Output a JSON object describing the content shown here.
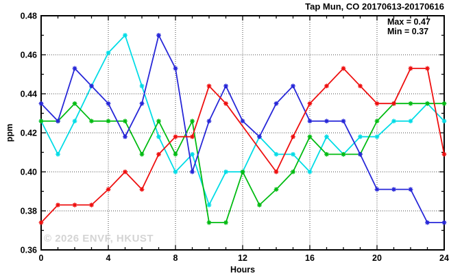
{
  "header": {
    "title": "Tap Mun, CO 20170613-20170616"
  },
  "legend": {
    "max_label": "Max = 0.47",
    "min_label": "Min = 0.37"
  },
  "axes": {
    "y_title": "ppm",
    "x_title": "Hours",
    "x_tick_labels": [
      "0",
      "4",
      "8",
      "12",
      "16",
      "20",
      "24"
    ],
    "y_tick_labels": [
      "0.36",
      "0.38",
      "0.40",
      "0.42",
      "0.44",
      "0.46",
      "0.48"
    ]
  },
  "watermark": {
    "text": "© 2026 ENVF, HKUST"
  },
  "chart_data": {
    "type": "line",
    "title": "Tap Mun, CO 20170613-20170616",
    "xlabel": "Hours",
    "ylabel": "ppm",
    "xlim": [
      0,
      24
    ],
    "ylim": [
      0.36,
      0.48
    ],
    "x_major_ticks": [
      0,
      4,
      8,
      12,
      16,
      20,
      24
    ],
    "y_major_ticks": [
      0.36,
      0.38,
      0.4,
      0.42,
      0.44,
      0.46,
      0.48
    ],
    "x_minor_step": 1,
    "y_minor_step": 0.01,
    "grid": true,
    "grid_x": [
      4,
      8,
      12,
      16,
      20
    ],
    "grid_y": [
      0.38,
      0.4,
      0.42,
      0.44,
      0.46
    ],
    "legend_position": "top-right-inside",
    "annotations": [
      "Max = 0.47",
      "Min = 0.37"
    ],
    "marker": "asterisk",
    "x": [
      0,
      1,
      2,
      3,
      4,
      5,
      6,
      7,
      8,
      9,
      10,
      11,
      12,
      13,
      14,
      15,
      16,
      17,
      18,
      19,
      20,
      21,
      22,
      23,
      24
    ],
    "series": [
      {
        "name": "cyan",
        "color": "#00dce6",
        "values": [
          0.426,
          0.409,
          0.426,
          0.444,
          0.461,
          0.47,
          0.444,
          0.418,
          0.4,
          0.409,
          0.383,
          0.4,
          0.4,
          0.418,
          0.409,
          0.409,
          0.4,
          0.418,
          0.409,
          0.418,
          0.418,
          0.426,
          0.426,
          0.435,
          0.426
        ]
      },
      {
        "name": "green",
        "color": "#00bb11",
        "values": [
          0.426,
          0.426,
          0.435,
          0.426,
          0.426,
          0.426,
          0.409,
          0.426,
          0.409,
          0.426,
          0.374,
          0.374,
          0.4,
          0.383,
          0.391,
          0.4,
          0.418,
          0.409,
          0.409,
          0.409,
          0.426,
          0.435,
          0.435,
          0.435,
          0.435
        ]
      },
      {
        "name": "blue",
        "color": "#2727d8",
        "values": [
          0.435,
          0.426,
          0.453,
          0.444,
          0.435,
          0.418,
          0.435,
          0.47,
          0.453,
          0.4,
          0.426,
          0.444,
          0.426,
          0.418,
          0.435,
          0.444,
          0.426,
          0.426,
          0.426,
          0.409,
          0.391,
          0.391,
          0.391,
          0.374,
          0.374
        ]
      },
      {
        "name": "red",
        "color": "#ee0f0f",
        "values": [
          0.374,
          0.383,
          0.383,
          0.383,
          0.391,
          0.4,
          0.391,
          0.409,
          0.418,
          0.418,
          0.444,
          0.435,
          null,
          null,
          0.4,
          0.418,
          0.435,
          0.444,
          0.453,
          0.444,
          0.435,
          0.435,
          0.453,
          0.453,
          0.409
        ]
      }
    ]
  }
}
